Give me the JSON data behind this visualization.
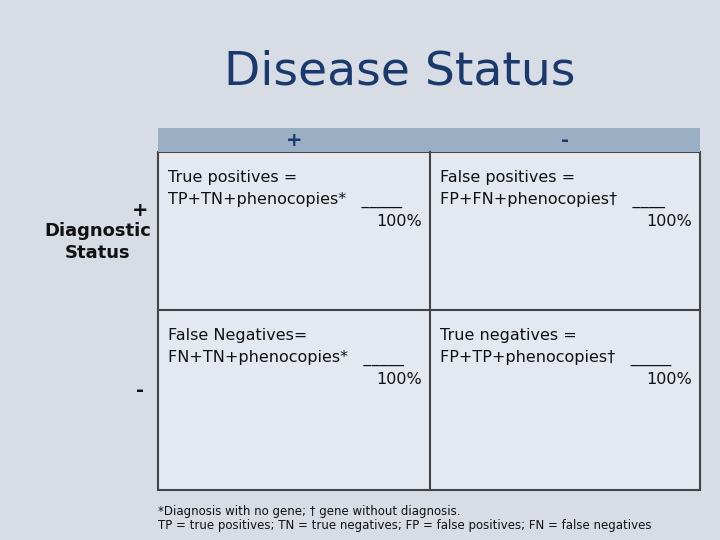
{
  "title": "Disease Status",
  "title_color": "#1a3a6e",
  "title_fontsize": 34,
  "title_fontweight": "normal",
  "bg_color": "#d8dce4",
  "cell_bg": "#e4e8f0",
  "table_border_color": "#444444",
  "header_bar_color": "#9aafc4",
  "col_header_plus": "+",
  "col_header_minus": "-",
  "row_label_diagnostic": "Diagnostic",
  "row_label_status": "Status",
  "row_label_plus": "+",
  "row_label_minus": "-",
  "cell_text_color": "#111111",
  "cell_fontsize": 11.5,
  "footnote_line1": "*Diagnosis with no gene; † gene without diagnosis.",
  "footnote_line2": "TP = true positives; TN = true negatives; FP = false positives; FN = false negatives",
  "footnote_fontsize": 8.5,
  "cells": [
    {
      "row": 0,
      "col": 0,
      "line1": "True positives =",
      "line2": "TP+TN+phenocopies*   _____",
      "line3": "100%"
    },
    {
      "row": 0,
      "col": 1,
      "line1": "False positives =",
      "line2": "FP+FN+phenocopies†   ____",
      "line3": "100%"
    },
    {
      "row": 1,
      "col": 0,
      "line1": "False Negatives=",
      "line2": "FN+TN+phenocopies*   _____",
      "line3": "100%"
    },
    {
      "row": 1,
      "col": 1,
      "line1": "True negatives =",
      "line2": "FP+TP+phenocopies†   _____",
      "line3": "100%"
    }
  ]
}
